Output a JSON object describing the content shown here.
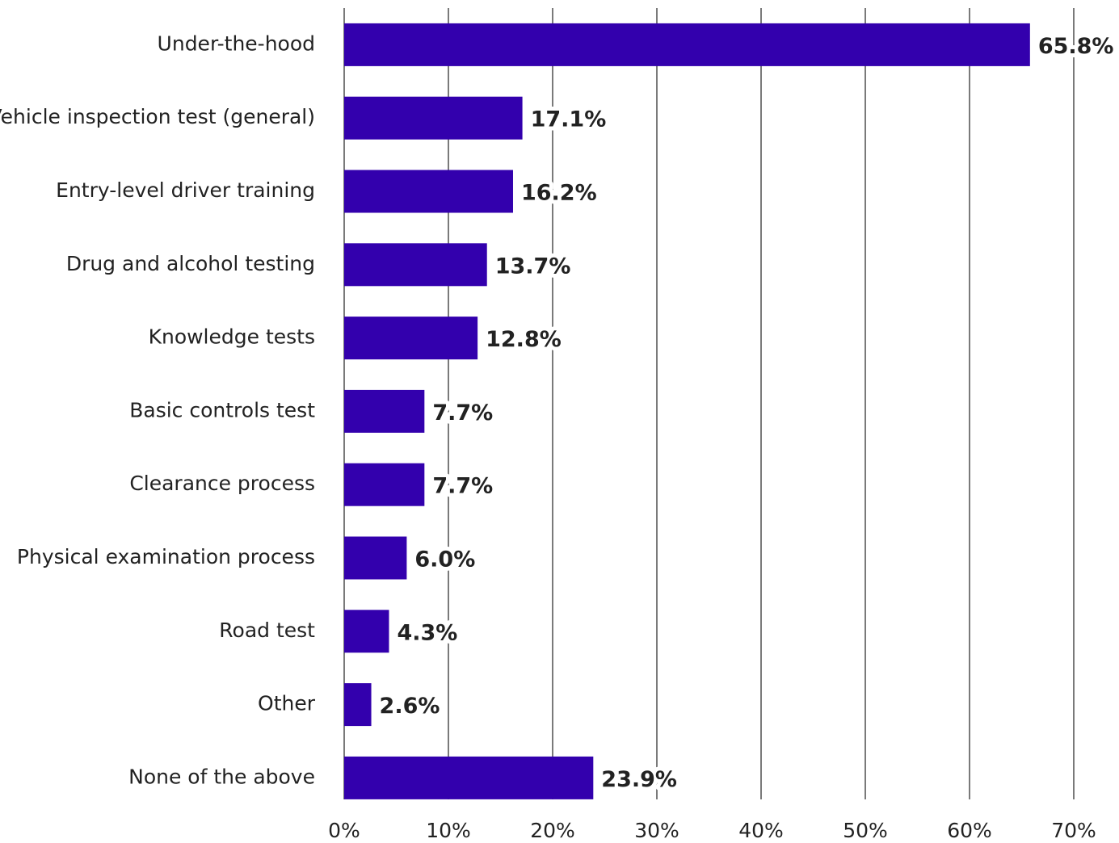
{
  "chart_data": {
    "type": "barh",
    "categories": [
      "Under-the-hood",
      "Vehicle inspection test (general)",
      "Entry-level driver training",
      "Drug and alcohol testing",
      "Knowledge tests",
      "Basic controls test",
      "Clearance process",
      "Physical examination process",
      "Road test",
      "Other",
      "None of the above"
    ],
    "values": [
      65.8,
      17.1,
      16.2,
      13.7,
      12.8,
      7.7,
      7.7,
      6.0,
      4.3,
      2.6,
      23.9
    ],
    "value_labels": [
      "65.8%",
      "17.1%",
      "16.2%",
      "13.7%",
      "12.8%",
      "7.7%",
      "7.7%",
      "6.0%",
      "4.3%",
      "2.6%",
      "23.9%"
    ],
    "color": "#3300ad",
    "xlim": [
      0,
      70
    ],
    "xticks": [
      {
        "value": 0,
        "label": "0%"
      },
      {
        "value": 10,
        "label": "10%"
      },
      {
        "value": 20,
        "label": "20%"
      },
      {
        "value": 30,
        "label": "30%"
      },
      {
        "value": 40,
        "label": "40%"
      },
      {
        "value": 50,
        "label": "50%"
      },
      {
        "value": 60,
        "label": "60%"
      },
      {
        "value": 70,
        "label": "70%"
      }
    ],
    "grid": true
  }
}
